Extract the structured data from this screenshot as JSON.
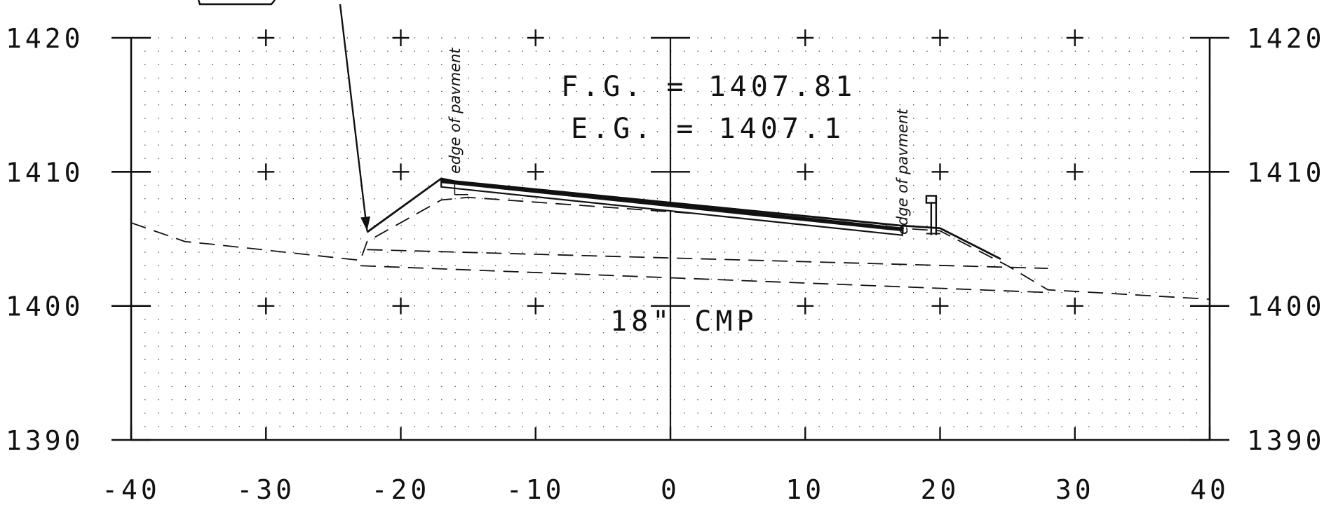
{
  "figure": {
    "x_axis": {
      "range": [
        -40,
        40
      ],
      "major_step": 10,
      "tick_labels": [
        "-40",
        "-30",
        "-20",
        "-10",
        "0",
        "10",
        "20",
        "30",
        "40"
      ]
    },
    "y_axis": {
      "range": [
        1390,
        1420
      ],
      "major_step": 10,
      "tick_labels": [
        "1390",
        "1400",
        "1410",
        "1420"
      ]
    },
    "grid": {
      "dotted": true,
      "dot_step_x": 2,
      "dot_step_y": 2
    },
    "annotations": {
      "fg": "F.G.  =  1407.81",
      "eg": "E.G.  =  1407.1",
      "culvert": "18\" CMP",
      "edge_left": "edge of pavment",
      "edge_right": "edge of pavment"
    },
    "profiles": {
      "finished_grade": [
        [
          -22.5,
          1405.5
        ],
        [
          -17,
          1409.5
        ],
        [
          -16,
          1409.3
        ],
        [
          17,
          1406.0
        ],
        [
          20,
          1405.8
        ],
        [
          24.5,
          1403.5
        ]
      ],
      "pavement_left": [
        -17,
        1409.4
      ],
      "pavement_right": [
        17.2,
        1405.8
      ],
      "existing_ground": [
        [
          -40,
          1406.2
        ],
        [
          -36,
          1404.8
        ],
        [
          -34,
          1404.6
        ],
        [
          -23,
          1403.4
        ],
        [
          -22.5,
          1404.8
        ],
        [
          -17,
          1407.9
        ],
        [
          -15,
          1408.1
        ],
        [
          17,
          1405.8
        ],
        [
          20,
          1405.6
        ],
        [
          25,
          1403.0
        ],
        [
          28,
          1401.2
        ],
        [
          40,
          1400.5
        ]
      ],
      "pipe_top": [
        [
          -22.5,
          1404.2
        ],
        [
          28,
          1402.8
        ]
      ],
      "pipe_bottom": [
        [
          -23,
          1403.0
        ],
        [
          28,
          1401.0
        ]
      ],
      "leader_start": [
        -24.5,
        1422.5
      ],
      "leader_end": [
        -22.5,
        1405.6
      ]
    },
    "colors": {
      "ink": "#111111",
      "grid": "#333333",
      "background": "#ffffff"
    }
  }
}
